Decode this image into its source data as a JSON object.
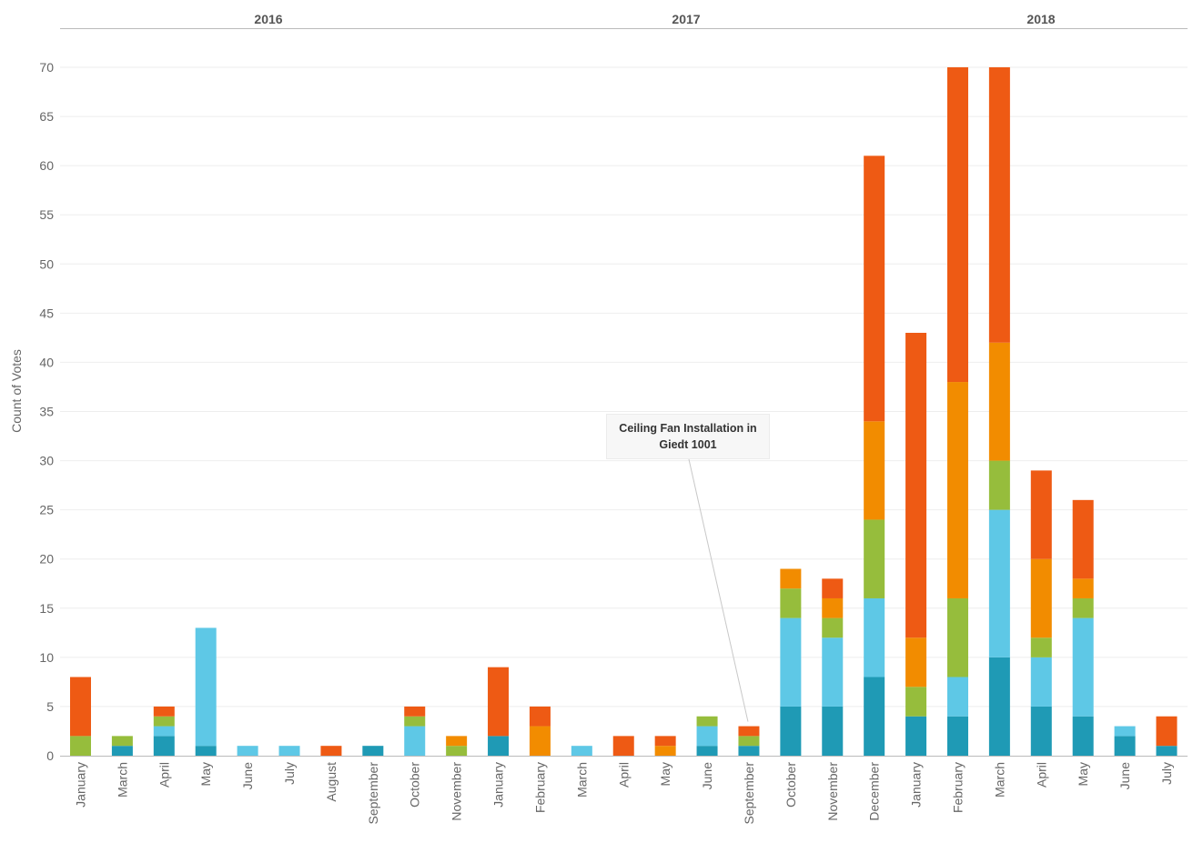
{
  "chart_data": {
    "type": "bar",
    "stacked": true,
    "ylabel": "Count of Votes",
    "ylim": [
      0,
      70
    ],
    "yticks": [
      0,
      5,
      10,
      15,
      20,
      25,
      30,
      35,
      40,
      45,
      50,
      55,
      60,
      65,
      70
    ],
    "grid": true,
    "years": [
      {
        "label": "2016",
        "months": [
          "January",
          "March",
          "April",
          "May",
          "June",
          "July",
          "August",
          "September",
          "October",
          "November"
        ]
      },
      {
        "label": "2017",
        "months": [
          "January",
          "February",
          "March",
          "April",
          "May",
          "June",
          "September",
          "October",
          "November",
          "December"
        ]
      },
      {
        "label": "2018",
        "months": [
          "January",
          "February",
          "March",
          "April",
          "May",
          "June",
          "July"
        ]
      }
    ],
    "categories": [
      "January",
      "March",
      "April",
      "May",
      "June",
      "July",
      "August",
      "September",
      "October",
      "November",
      "January",
      "February",
      "March",
      "April",
      "May",
      "June",
      "September",
      "October",
      "November",
      "December",
      "January",
      "February",
      "March",
      "April",
      "May",
      "June",
      "July"
    ],
    "series": [
      {
        "color": "#1f9ab5",
        "values": [
          0,
          1,
          2,
          1,
          0,
          0,
          0,
          1,
          0,
          0,
          2,
          0,
          0,
          0,
          0,
          1,
          1,
          5,
          5,
          8,
          4,
          4,
          10,
          5,
          4,
          2,
          1
        ]
      },
      {
        "color": "#5ec8e6",
        "values": [
          0,
          0,
          1,
          12,
          1,
          1,
          0,
          0,
          3,
          0,
          0,
          0,
          1,
          0,
          0,
          2,
          0,
          9,
          7,
          8,
          0,
          4,
          15,
          5,
          10,
          1,
          0
        ]
      },
      {
        "color": "#96bd3c",
        "values": [
          2,
          1,
          1,
          0,
          0,
          0,
          0,
          0,
          1,
          1,
          0,
          0,
          0,
          0,
          0,
          1,
          1,
          3,
          2,
          8,
          3,
          8,
          5,
          2,
          2,
          0,
          0
        ]
      },
      {
        "color": "#f28c00",
        "values": [
          0,
          0,
          0,
          0,
          0,
          0,
          0,
          0,
          0,
          1,
          0,
          3,
          0,
          0,
          1,
          0,
          0,
          2,
          2,
          10,
          5,
          22,
          12,
          8,
          2,
          0,
          0
        ]
      },
      {
        "color": "#ee5a14",
        "values": [
          6,
          0,
          1,
          0,
          0,
          0,
          1,
          0,
          1,
          0,
          7,
          2,
          0,
          2,
          1,
          0,
          1,
          0,
          2,
          27,
          31,
          32,
          28,
          9,
          8,
          0,
          3
        ]
      }
    ],
    "annotation": {
      "text": "Ceiling Fan Installation in Giedt 1001",
      "category_index": 16
    }
  }
}
